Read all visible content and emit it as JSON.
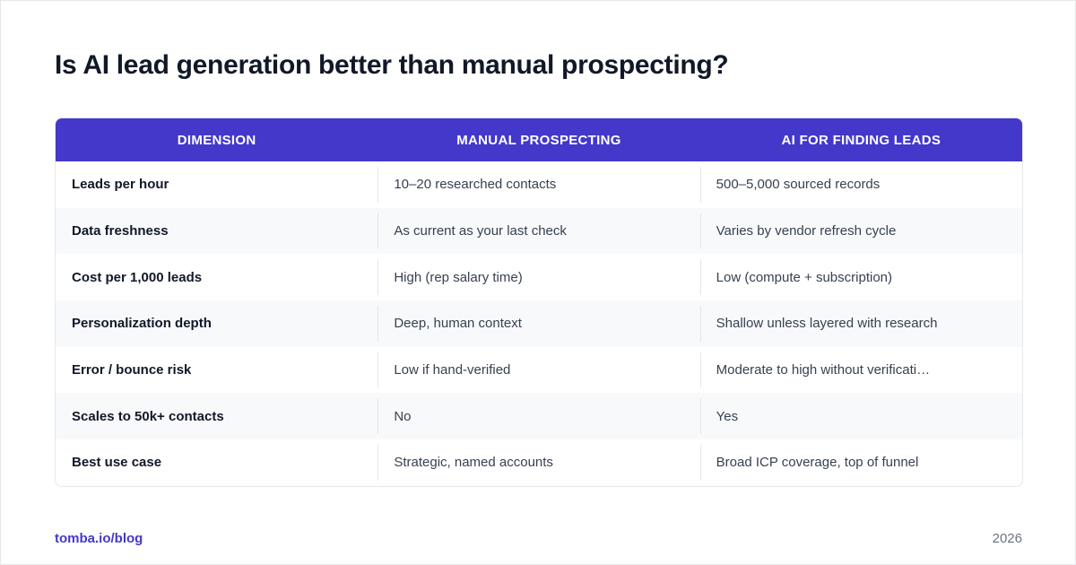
{
  "title": "Is AI lead generation better than manual prospecting?",
  "table": {
    "headers": [
      "DIMENSION",
      "MANUAL PROSPECTING",
      "AI FOR FINDING LEADS"
    ],
    "rows": [
      [
        "Leads per hour",
        "10–20 researched contacts",
        "500–5,000 sourced records"
      ],
      [
        "Data freshness",
        "As current as your last check",
        "Varies by vendor refresh cycle"
      ],
      [
        "Cost per 1,000 leads",
        "High (rep salary time)",
        "Low (compute + subscription)"
      ],
      [
        "Personalization depth",
        "Deep, human context",
        "Shallow unless layered with research"
      ],
      [
        "Error / bounce risk",
        "Low if hand-verified",
        "Moderate to high without verificati…"
      ],
      [
        "Scales to 50k+ contacts",
        "No",
        "Yes"
      ],
      [
        "Best use case",
        "Strategic, named accounts",
        "Broad ICP coverage, top of funnel"
      ]
    ]
  },
  "footer": {
    "link": "tomba.io/blog",
    "year": "2026"
  },
  "colors": {
    "header_bg": "#4338ca",
    "accent": "#4338ca"
  }
}
